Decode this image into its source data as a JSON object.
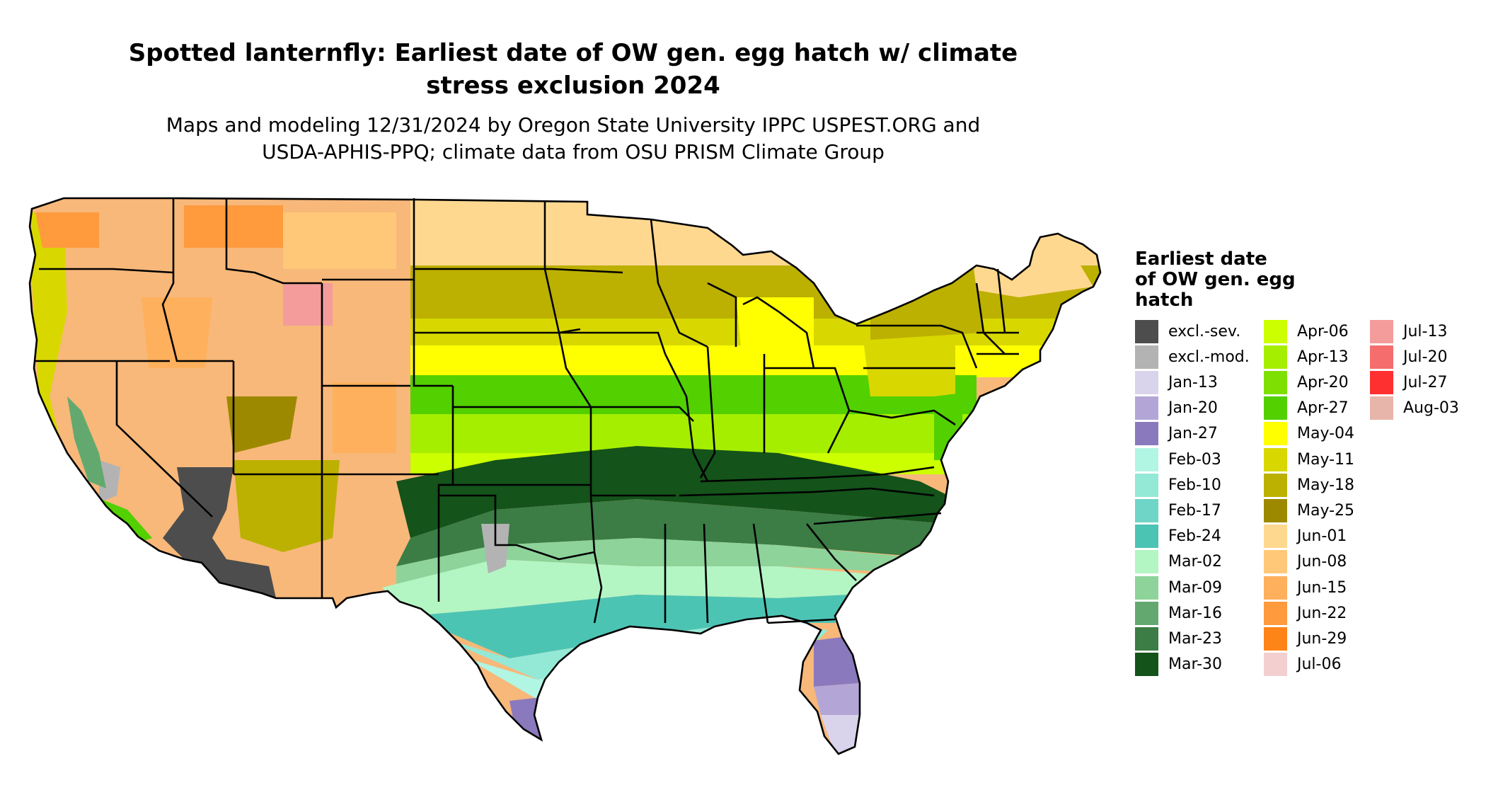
{
  "title_line1": "Spotted lanternfly: Earliest date of OW gen. egg hatch w/ climate",
  "title_line2": "stress exclusion 2024",
  "subtitle_line1": "Maps and modeling 12/31/2024 by Oregon State University IPPC USPEST.ORG and",
  "subtitle_line2": "USDA-APHIS-PPQ; climate data from OSU PRISM Climate Group",
  "legend": {
    "title_line1": "Earliest date",
    "title_line2": "of OW gen. egg",
    "title_line3": "hatch",
    "items": [
      {
        "label": "excl.-sev.",
        "color": "#4d4d4d"
      },
      {
        "label": "excl.-mod.",
        "color": "#b3b3b3"
      },
      {
        "label": "Jan-13",
        "color": "#dad3ec"
      },
      {
        "label": "Jan-20",
        "color": "#b3a6d6"
      },
      {
        "label": "Jan-27",
        "color": "#8b79bd"
      },
      {
        "label": "Feb-03",
        "color": "#b1f5e3"
      },
      {
        "label": "Feb-10",
        "color": "#94e8d6"
      },
      {
        "label": "Feb-17",
        "color": "#6fd5c6"
      },
      {
        "label": "Feb-24",
        "color": "#4cc4b4"
      },
      {
        "label": "Mar-02",
        "color": "#b4f5c4"
      },
      {
        "label": "Mar-09",
        "color": "#8dd39a"
      },
      {
        "label": "Mar-16",
        "color": "#63a96f"
      },
      {
        "label": "Mar-23",
        "color": "#3b7d45"
      },
      {
        "label": "Mar-30",
        "color": "#14531a"
      },
      {
        "label": "Apr-06",
        "color": "#ccff00"
      },
      {
        "label": "Apr-13",
        "color": "#a6ee00"
      },
      {
        "label": "Apr-20",
        "color": "#7ee000"
      },
      {
        "label": "Apr-27",
        "color": "#52d000"
      },
      {
        "label": "May-04",
        "color": "#ffff00"
      },
      {
        "label": "May-11",
        "color": "#d8d800"
      },
      {
        "label": "May-18",
        "color": "#bcb000"
      },
      {
        "label": "May-25",
        "color": "#9d8900"
      },
      {
        "label": "Jun-01",
        "color": "#ffd890"
      },
      {
        "label": "Jun-08",
        "color": "#ffc878"
      },
      {
        "label": "Jun-15",
        "color": "#ffb05c"
      },
      {
        "label": "Jun-22",
        "color": "#ff9a3d"
      },
      {
        "label": "Jun-29",
        "color": "#ff8418"
      },
      {
        "label": "Jul-06",
        "color": "#f4cfcf"
      },
      {
        "label": "Jul-13",
        "color": "#f49c9c"
      },
      {
        "label": "Jul-20",
        "color": "#f56d6d"
      },
      {
        "label": "Jul-27",
        "color": "#ff3030"
      },
      {
        "label": "Aug-03",
        "color": "#e8b5aa"
      }
    ]
  }
}
